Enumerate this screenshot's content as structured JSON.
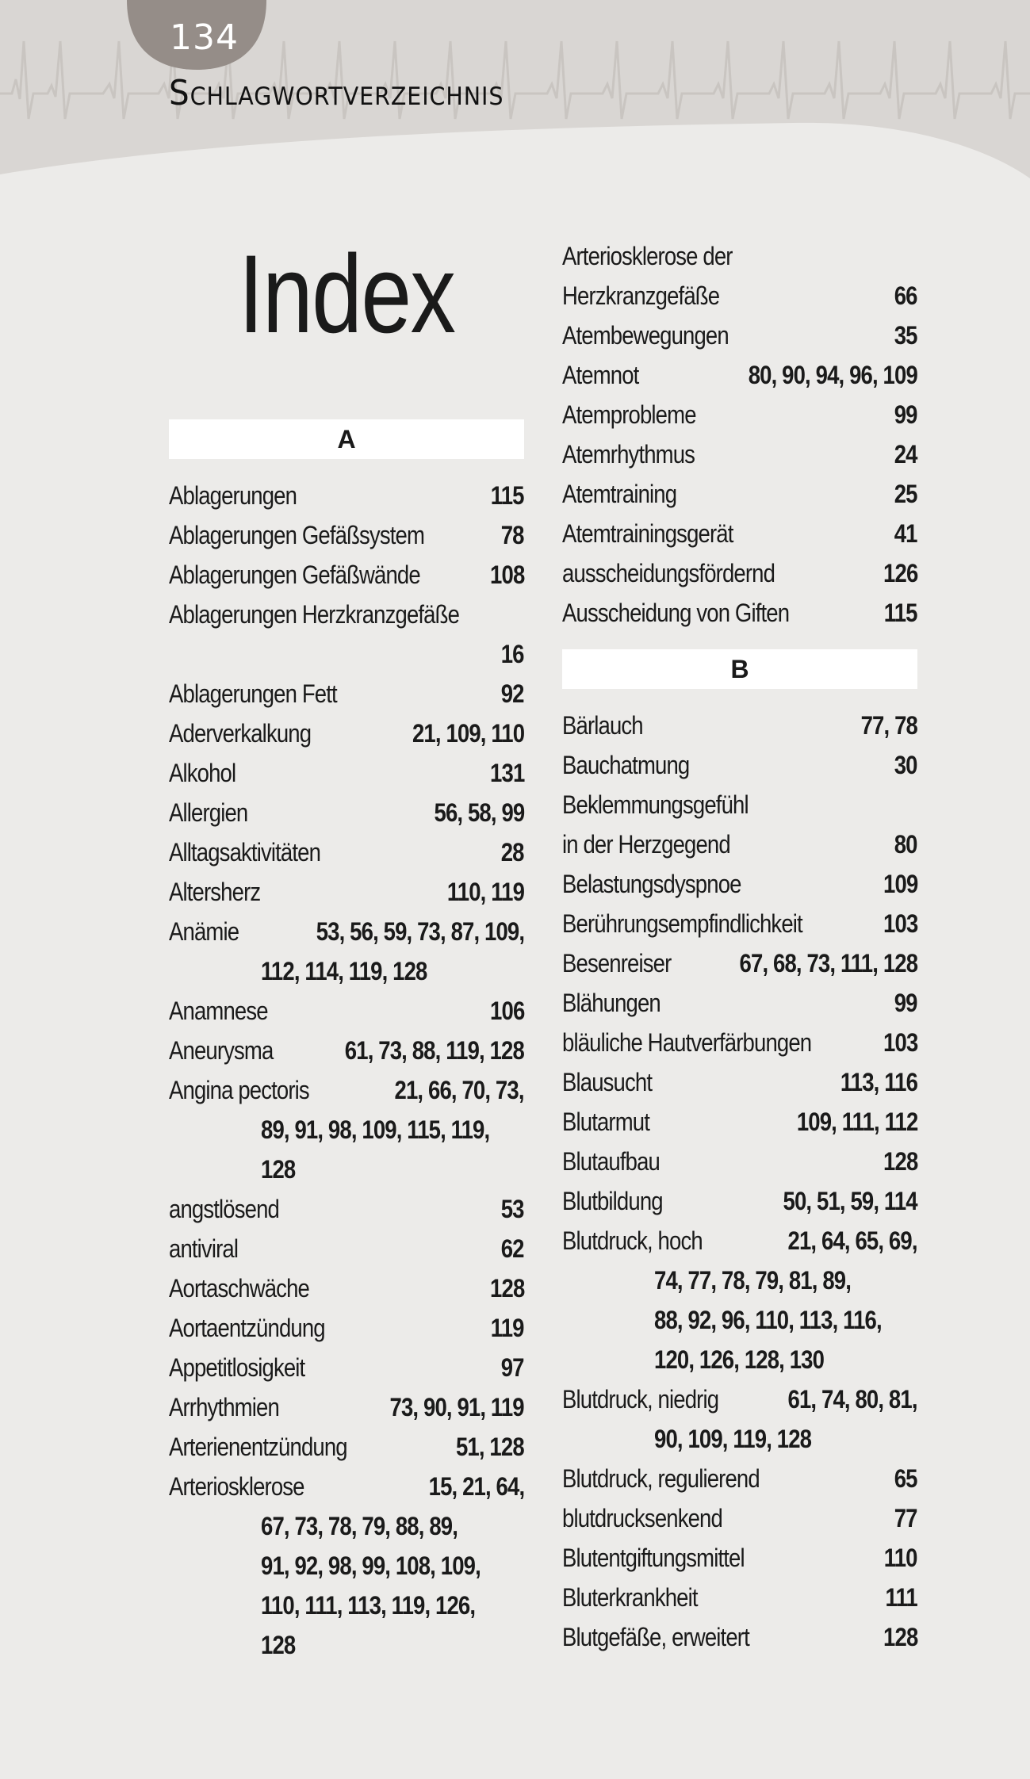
{
  "header": {
    "page_number": "134",
    "section_title": "Schlagwortverzeichnis"
  },
  "colors": {
    "band": "#d9d6d3",
    "page_badge": "#958d88",
    "body": "#ecebe9"
  },
  "index_title": "Index",
  "columns": [
    {
      "blocks": [
        {
          "letter": "A",
          "lines": [
            {
              "t": "Ablagerungen",
              "p": "115"
            },
            {
              "t": "Ablagerungen Gefäßsystem",
              "p": "78"
            },
            {
              "t": "Ablagerungen Gefäßwände",
              "p": "108"
            },
            {
              "t": "Ablagerungen Herzkranzgefäße",
              "p": ""
            },
            {
              "t": "",
              "p": "16"
            },
            {
              "t": "Ablagerungen Fett",
              "p": "92"
            },
            {
              "t": "Aderverkalkung",
              "p": "21, 109, 110"
            },
            {
              "t": "Alkohol",
              "p": "131"
            },
            {
              "t": "Allergien",
              "p": "56, 58, 99"
            },
            {
              "t": "Alltagsaktivitäten",
              "p": "28"
            },
            {
              "t": "Altersherz",
              "p": "110, 119"
            },
            {
              "t": "Anämie",
              "p": "53, 56, 59, 73, 87, 109,"
            },
            {
              "t": "",
              "p": "112, 114, 119, 128",
              "wrap": true
            },
            {
              "t": "Anamnese",
              "p": "106"
            },
            {
              "t": "Aneurysma",
              "p": "61, 73, 88, 119, 128"
            },
            {
              "t": "Angina pectoris",
              "p": "21, 66, 70, 73,"
            },
            {
              "t": "",
              "p": "89, 91, 98, 109, 115, 119,",
              "wrap": true
            },
            {
              "t": "",
              "p": "128",
              "wrap": true
            },
            {
              "t": "angstlösend",
              "p": "53"
            },
            {
              "t": "antiviral",
              "p": "62"
            },
            {
              "t": "Aortaschwäche",
              "p": "128"
            },
            {
              "t": "Aortaentzündung",
              "p": "119"
            },
            {
              "t": "Appetitlosigkeit",
              "p": "97"
            },
            {
              "t": "Arrhythmien",
              "p": "73, 90, 91, 119"
            },
            {
              "t": "Arterienentzündung",
              "p": "51, 128"
            },
            {
              "t": "Arteriosklerose",
              "p": "15, 21, 64,"
            },
            {
              "t": "",
              "p": "67, 73, 78, 79, 88, 89,",
              "wrap": true
            },
            {
              "t": "",
              "p": "91, 92, 98, 99, 108, 109,",
              "wrap": true
            },
            {
              "t": "",
              "p": "110, 111, 113, 119, 126,",
              "wrap": true
            },
            {
              "t": "",
              "p": "128",
              "wrap": true
            }
          ]
        }
      ]
    },
    {
      "blocks": [
        {
          "letter": "",
          "lines": [
            {
              "t": "Arteriosklerose der",
              "p": ""
            },
            {
              "t": "Herzkranzgefäße",
              "p": "66"
            },
            {
              "t": "Atembewegungen",
              "p": "35"
            },
            {
              "t": "Atemnot",
              "p": "80, 90, 94, 96, 109"
            },
            {
              "t": "Atemprobleme",
              "p": "99"
            },
            {
              "t": "Atemrhythmus",
              "p": "24"
            },
            {
              "t": "Atemtraining",
              "p": "25"
            },
            {
              "t": "Atemtrainingsgerät",
              "p": "41"
            },
            {
              "t": "ausscheidungsfördernd",
              "p": "126"
            },
            {
              "t": "Ausscheidung von Giften",
              "p": "115"
            }
          ]
        },
        {
          "letter": "B",
          "lines": [
            {
              "t": "Bärlauch",
              "p": "77, 78"
            },
            {
              "t": "Bauchatmung",
              "p": "30"
            },
            {
              "t": "Beklemmungsgefühl",
              "p": ""
            },
            {
              "t": "in der Herzgegend",
              "p": "80"
            },
            {
              "t": "Belastungsdyspnoe",
              "p": "109"
            },
            {
              "t": "Berührungsempfindlichkeit",
              "p": "103"
            },
            {
              "t": "Besenreiser",
              "p": "67, 68, 73, 111, 128"
            },
            {
              "t": "Blähungen",
              "p": "99"
            },
            {
              "t": "bläuliche Hautverfärbungen",
              "p": "103"
            },
            {
              "t": "Blausucht",
              "p": "113, 116"
            },
            {
              "t": "Blutarmut",
              "p": "109, 111, 112"
            },
            {
              "t": "Blutaufbau",
              "p": "128"
            },
            {
              "t": "Blutbildung",
              "p": "50, 51, 59, 114"
            },
            {
              "t": "Blutdruck, hoch",
              "p": "21, 64, 65, 69,"
            },
            {
              "t": "",
              "p": "74, 77, 78, 79, 81, 89,",
              "wrap": true
            },
            {
              "t": "",
              "p": "88, 92, 96, 110, 113, 116,",
              "wrap": true
            },
            {
              "t": "",
              "p": "120, 126, 128, 130",
              "wrap": true
            },
            {
              "t": "Blutdruck, niedrig",
              "p": "61, 74, 80, 81,"
            },
            {
              "t": "",
              "p": "90, 109, 119, 128",
              "wrap": true
            },
            {
              "t": "Blutdruck, regulierend",
              "p": "65"
            },
            {
              "t": "blutdrucksenkend",
              "p": "77"
            },
            {
              "t": "Blutentgiftungsmittel",
              "p": "110"
            },
            {
              "t": "Bluterkrankheit",
              "p": "111"
            },
            {
              "t": "Blutgefäße, erweitert",
              "p": "128"
            }
          ]
        }
      ]
    }
  ]
}
